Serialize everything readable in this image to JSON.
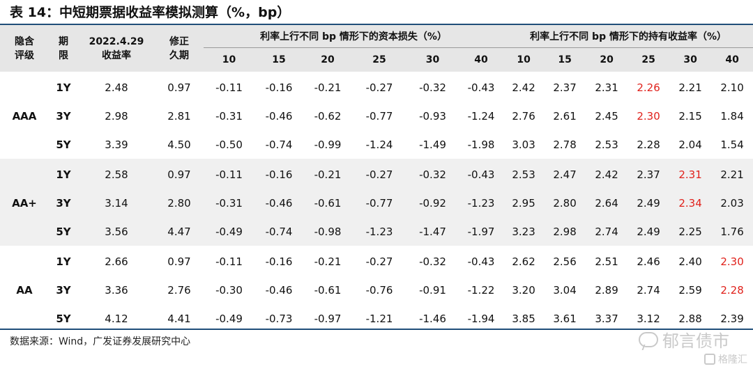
{
  "title": "表 14：中短期票据收益率模拟测算（%，bp）",
  "header": {
    "rating": [
      "隐含",
      "评级"
    ],
    "term": [
      "期",
      "限"
    ],
    "yield": [
      "2022.4.29",
      "收益率"
    ],
    "duration": [
      "修正",
      "久期"
    ],
    "group_loss": "利率上行不同 bp 情形下的资本损失（%）",
    "group_hold": "利率上行不同 bp 情形下的持有收益率（%）",
    "bps": [
      "10",
      "15",
      "20",
      "25",
      "30",
      "40"
    ]
  },
  "groups": [
    {
      "rating": "AAA",
      "rows": [
        {
          "term": "1Y",
          "yield": "2.48",
          "duration": "0.97",
          "loss": [
            "-0.11",
            "-0.16",
            "-0.21",
            "-0.27",
            "-0.32",
            "-0.43"
          ],
          "hold": [
            "2.42",
            "2.37",
            "2.31",
            "2.26",
            "2.21",
            "2.10"
          ],
          "highlight": 3
        },
        {
          "term": "3Y",
          "yield": "2.98",
          "duration": "2.81",
          "loss": [
            "-0.31",
            "-0.46",
            "-0.62",
            "-0.77",
            "-0.93",
            "-1.24"
          ],
          "hold": [
            "2.76",
            "2.61",
            "2.45",
            "2.30",
            "2.15",
            "1.84"
          ],
          "highlight": 3
        },
        {
          "term": "5Y",
          "yield": "3.39",
          "duration": "4.50",
          "loss": [
            "-0.50",
            "-0.74",
            "-0.99",
            "-1.24",
            "-1.49",
            "-1.98"
          ],
          "hold": [
            "3.03",
            "2.78",
            "2.53",
            "2.28",
            "2.04",
            "1.54"
          ],
          "highlight": -1
        }
      ]
    },
    {
      "rating": "AA+",
      "rows": [
        {
          "term": "1Y",
          "yield": "2.58",
          "duration": "0.97",
          "loss": [
            "-0.11",
            "-0.16",
            "-0.21",
            "-0.27",
            "-0.32",
            "-0.43"
          ],
          "hold": [
            "2.53",
            "2.47",
            "2.42",
            "2.37",
            "2.31",
            "2.21"
          ],
          "highlight": 4
        },
        {
          "term": "3Y",
          "yield": "3.14",
          "duration": "2.80",
          "loss": [
            "-0.31",
            "-0.46",
            "-0.61",
            "-0.77",
            "-0.92",
            "-1.23"
          ],
          "hold": [
            "2.95",
            "2.80",
            "2.64",
            "2.49",
            "2.34",
            "2.03"
          ],
          "highlight": 4
        },
        {
          "term": "5Y",
          "yield": "3.56",
          "duration": "4.47",
          "loss": [
            "-0.49",
            "-0.74",
            "-0.98",
            "-1.23",
            "-1.47",
            "-1.97"
          ],
          "hold": [
            "3.23",
            "2.98",
            "2.74",
            "2.49",
            "2.25",
            "1.76"
          ],
          "highlight": -1
        }
      ]
    },
    {
      "rating": "AA",
      "rows": [
        {
          "term": "1Y",
          "yield": "2.66",
          "duration": "0.97",
          "loss": [
            "-0.11",
            "-0.16",
            "-0.21",
            "-0.27",
            "-0.32",
            "-0.43"
          ],
          "hold": [
            "2.62",
            "2.56",
            "2.51",
            "2.46",
            "2.40",
            "2.30"
          ],
          "highlight": 5
        },
        {
          "term": "3Y",
          "yield": "3.36",
          "duration": "2.76",
          "loss": [
            "-0.30",
            "-0.46",
            "-0.61",
            "-0.76",
            "-0.91",
            "-1.22"
          ],
          "hold": [
            "3.20",
            "3.04",
            "2.89",
            "2.74",
            "2.59",
            "2.28"
          ],
          "highlight": 5
        },
        {
          "term": "5Y",
          "yield": "4.12",
          "duration": "4.41",
          "loss": [
            "-0.49",
            "-0.73",
            "-0.97",
            "-1.21",
            "-1.46",
            "-1.94"
          ],
          "hold": [
            "3.85",
            "3.61",
            "3.37",
            "3.12",
            "2.88",
            "2.39"
          ],
          "highlight": -1
        }
      ]
    }
  ],
  "colors": {
    "highlight": "#e0211b",
    "rule": "#1f4e79",
    "header_bg": "#e6e6e6"
  },
  "source": "数据来源：Wind，广发证券发展研究中心",
  "watermark": "郁言债市",
  "brand": "格隆汇",
  "icons": {
    "watermark": "wechat-icon",
    "brand": "brand-logo-icon"
  }
}
